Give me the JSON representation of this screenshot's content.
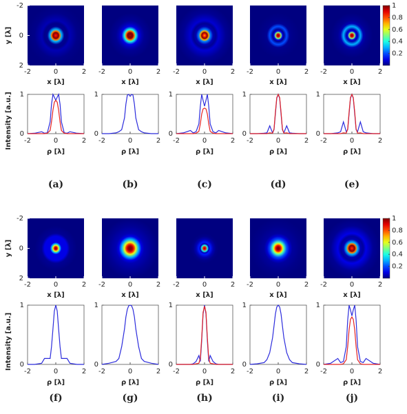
{
  "chart_data": [
    {
      "type": "line",
      "label": "(a)",
      "xlabel": "ρ [λ]",
      "ylabel": "Intensity [a.u.]",
      "xlim": [
        -2,
        2
      ],
      "xticks": [
        -2,
        0,
        2
      ],
      "ylim": [
        0,
        1
      ],
      "yticks": [
        0,
        1
      ],
      "image": {
        "xlabel": "x [λ]",
        "ylabel": "y [λ]",
        "xlim": [
          -2,
          2
        ],
        "xticks": [
          -2,
          0,
          2
        ],
        "ylim": [
          2,
          -2
        ],
        "yticks": [
          -2,
          0,
          2
        ]
      },
      "x": [
        -2,
        -1.5,
        -1,
        -0.8,
        -0.6,
        -0.4,
        -0.3,
        -0.2,
        -0.1,
        0,
        0.1,
        0.2,
        0.3,
        0.4,
        0.6,
        0.8,
        1,
        1.5,
        2
      ],
      "series": [
        {
          "color": "#2b2bdc",
          "values": [
            0,
            0.01,
            0.05,
            0.01,
            0.02,
            0.3,
            0.75,
            1,
            0.93,
            0.85,
            0.93,
            1,
            0.75,
            0.3,
            0.02,
            0.01,
            0.05,
            0.01,
            0
          ]
        },
        {
          "color": "#e42222",
          "values": [
            0,
            0,
            0,
            0,
            0.01,
            0.08,
            0.3,
            0.6,
            0.8,
            0.85,
            0.8,
            0.6,
            0.3,
            0.08,
            0.01,
            0,
            0,
            0,
            0
          ]
        }
      ]
    },
    {
      "type": "line",
      "label": "(b)",
      "xlabel": "ρ [λ]",
      "xlim": [
        -2,
        2
      ],
      "xticks": [
        -2,
        0,
        2
      ],
      "ylim": [
        0,
        1
      ],
      "yticks": [
        0,
        1
      ],
      "image": {
        "xlabel": "x [λ]",
        "xlim": [
          -2,
          2
        ],
        "xticks": [
          -2,
          0,
          2
        ],
        "ylim": [
          2,
          -2
        ]
      },
      "x": [
        -2,
        -1.5,
        -1,
        -0.8,
        -0.6,
        -0.4,
        -0.3,
        -0.2,
        -0.1,
        0,
        0.1,
        0.2,
        0.3,
        0.4,
        0.6,
        0.8,
        1,
        1.5,
        2
      ],
      "series": [
        {
          "color": "#2b2bdc",
          "values": [
            0,
            0,
            0.02,
            0.05,
            0.1,
            0.4,
            0.75,
            0.98,
            1,
            0.95,
            1,
            0.98,
            0.75,
            0.4,
            0.1,
            0.05,
            0.02,
            0,
            0
          ]
        }
      ]
    },
    {
      "type": "line",
      "label": "(c)",
      "xlabel": "ρ [λ]",
      "xlim": [
        -2,
        2
      ],
      "xticks": [
        -2,
        0,
        2
      ],
      "ylim": [
        0,
        1
      ],
      "yticks": [
        0,
        1
      ],
      "image": {
        "xlabel": "x [λ]",
        "xlim": [
          -2,
          2
        ],
        "xticks": [
          -2,
          0,
          2
        ],
        "ylim": [
          2,
          -2
        ]
      },
      "x": [
        -2,
        -1.5,
        -1,
        -0.8,
        -0.6,
        -0.4,
        -0.3,
        -0.2,
        -0.1,
        0,
        0.1,
        0.2,
        0.3,
        0.4,
        0.6,
        0.8,
        1,
        1.5,
        2
      ],
      "series": [
        {
          "color": "#2b2bdc",
          "values": [
            0,
            0.02,
            0.08,
            0.02,
            0.05,
            0.25,
            0.7,
            1,
            0.85,
            0.7,
            0.85,
            1,
            0.7,
            0.25,
            0.05,
            0.02,
            0.08,
            0.02,
            0
          ]
        },
        {
          "color": "#e42222",
          "values": [
            0,
            0,
            0,
            0,
            0.01,
            0.06,
            0.25,
            0.5,
            0.63,
            0.65,
            0.63,
            0.5,
            0.25,
            0.06,
            0.01,
            0,
            0,
            0,
            0
          ]
        }
      ]
    },
    {
      "type": "line",
      "label": "(d)",
      "xlabel": "ρ [λ]",
      "xlim": [
        -2,
        2
      ],
      "xticks": [
        -2,
        0,
        2
      ],
      "ylim": [
        0,
        1
      ],
      "yticks": [
        0,
        1
      ],
      "image": {
        "xlabel": "x [λ]",
        "xlim": [
          -2,
          2
        ],
        "xticks": [
          -2,
          0,
          2
        ],
        "ylim": [
          2,
          -2
        ]
      },
      "x": [
        -2,
        -1.5,
        -1,
        -0.8,
        -0.6,
        -0.4,
        -0.3,
        -0.2,
        -0.1,
        0,
        0.1,
        0.2,
        0.3,
        0.4,
        0.6,
        0.8,
        1,
        1.5,
        2
      ],
      "series": [
        {
          "color": "#2b2bdc",
          "values": [
            0,
            0,
            0.01,
            0.02,
            0.2,
            0.02,
            0.1,
            0.5,
            0.9,
            1,
            0.9,
            0.5,
            0.1,
            0.02,
            0.2,
            0.02,
            0.01,
            0,
            0
          ]
        },
        {
          "color": "#e42222",
          "values": [
            0,
            0,
            0,
            0,
            0.02,
            0.01,
            0.12,
            0.55,
            0.92,
            1,
            0.92,
            0.55,
            0.12,
            0.01,
            0.02,
            0,
            0,
            0,
            0
          ]
        }
      ]
    },
    {
      "type": "line",
      "label": "(e)",
      "xlabel": "ρ [λ]",
      "xlim": [
        -2,
        2
      ],
      "xticks": [
        -2,
        0,
        2
      ],
      "ylim": [
        0,
        1
      ],
      "yticks": [
        0,
        1
      ],
      "image": {
        "xlabel": "x [λ]",
        "xlim": [
          -2,
          2
        ],
        "xticks": [
          -2,
          0,
          2
        ],
        "ylim": [
          2,
          -2
        ]
      },
      "colorbar": {
        "clim": [
          0,
          1
        ],
        "ticks": [
          0.2,
          0.4,
          0.6,
          0.8,
          1
        ]
      },
      "x": [
        -2,
        -1.5,
        -1,
        -0.8,
        -0.6,
        -0.4,
        -0.3,
        -0.2,
        -0.1,
        0,
        0.1,
        0.2,
        0.3,
        0.4,
        0.6,
        0.8,
        1,
        1.5,
        2
      ],
      "series": [
        {
          "color": "#2b2bdc",
          "values": [
            0,
            0,
            0.02,
            0.05,
            0.3,
            0.05,
            0.1,
            0.5,
            0.9,
            1,
            0.9,
            0.5,
            0.1,
            0.05,
            0.3,
            0.05,
            0.02,
            0,
            0
          ]
        },
        {
          "color": "#e42222",
          "values": [
            0,
            0,
            0,
            0,
            0.02,
            0.01,
            0.12,
            0.55,
            0.92,
            1,
            0.92,
            0.55,
            0.12,
            0.01,
            0.02,
            0,
            0,
            0,
            0
          ]
        }
      ]
    },
    {
      "type": "line",
      "label": "(f)",
      "xlabel": "ρ [λ]",
      "ylabel": "Intensity [a.u.]",
      "xlim": [
        -2,
        2
      ],
      "xticks": [
        -2,
        0,
        2
      ],
      "ylim": [
        0,
        1
      ],
      "yticks": [
        0,
        1
      ],
      "image": {
        "xlabel": "x [λ]",
        "ylabel": "y [λ]",
        "xlim": [
          -2,
          2
        ],
        "xticks": [
          -2,
          0,
          2
        ],
        "ylim": [
          2,
          -2
        ],
        "yticks": [
          -2,
          0,
          2
        ]
      },
      "x": [
        -2,
        -1.5,
        -1,
        -0.8,
        -0.6,
        -0.4,
        -0.3,
        -0.2,
        -0.1,
        0,
        0.1,
        0.2,
        0.3,
        0.4,
        0.6,
        0.8,
        1,
        1.5,
        2
      ],
      "series": [
        {
          "color": "#2b2bdc",
          "values": [
            0,
            0,
            0.02,
            0.1,
            0.1,
            0.1,
            0.3,
            0.6,
            0.9,
            1,
            0.9,
            0.6,
            0.3,
            0.1,
            0.1,
            0.1,
            0.02,
            0,
            0
          ]
        }
      ]
    },
    {
      "type": "line",
      "label": "(g)",
      "xlabel": "ρ [λ]",
      "xlim": [
        -2,
        2
      ],
      "xticks": [
        -2,
        0,
        2
      ],
      "ylim": [
        0,
        1
      ],
      "yticks": [
        0,
        1
      ],
      "image": {
        "xlabel": "x [λ]",
        "xlim": [
          -2,
          2
        ],
        "xticks": [
          -2,
          0,
          2
        ],
        "ylim": [
          2,
          -2
        ]
      },
      "x": [
        -2,
        -1.5,
        -1,
        -0.8,
        -0.6,
        -0.4,
        -0.3,
        -0.2,
        -0.1,
        0,
        0.1,
        0.2,
        0.3,
        0.4,
        0.6,
        0.8,
        1,
        1.5,
        2
      ],
      "series": [
        {
          "color": "#2b2bdc",
          "values": [
            0,
            0.02,
            0.05,
            0.1,
            0.3,
            0.6,
            0.8,
            0.93,
            0.99,
            1,
            0.99,
            0.93,
            0.8,
            0.6,
            0.3,
            0.1,
            0.05,
            0.02,
            0
          ]
        }
      ]
    },
    {
      "type": "line",
      "label": "(h)",
      "xlabel": "ρ [λ]",
      "xlim": [
        -2,
        2
      ],
      "xticks": [
        -2,
        0,
        2
      ],
      "ylim": [
        0,
        1
      ],
      "yticks": [
        0,
        1
      ],
      "image": {
        "xlabel": "x [λ]",
        "xlim": [
          -2,
          2
        ],
        "xticks": [
          -2,
          0,
          2
        ],
        "ylim": [
          2,
          -2
        ]
      },
      "x": [
        -2,
        -1.5,
        -1,
        -0.8,
        -0.6,
        -0.4,
        -0.3,
        -0.2,
        -0.1,
        0,
        0.1,
        0.2,
        0.3,
        0.4,
        0.6,
        0.8,
        1,
        1.5,
        2
      ],
      "series": [
        {
          "color": "#2b2bdc",
          "values": [
            0,
            0,
            0,
            0.01,
            0.05,
            0.15,
            0.05,
            0.4,
            0.85,
            1,
            0.85,
            0.4,
            0.05,
            0.15,
            0.05,
            0.01,
            0,
            0,
            0
          ]
        },
        {
          "color": "#e42222",
          "values": [
            0,
            0,
            0,
            0,
            0.01,
            0.02,
            0.1,
            0.45,
            0.88,
            0.98,
            0.88,
            0.45,
            0.1,
            0.02,
            0.01,
            0,
            0,
            0,
            0
          ]
        }
      ]
    },
    {
      "type": "line",
      "label": "(i)",
      "xlabel": "ρ [λ]",
      "xlim": [
        -2,
        2
      ],
      "xticks": [
        -2,
        0,
        2
      ],
      "ylim": [
        0,
        1
      ],
      "yticks": [
        0,
        1
      ],
      "image": {
        "xlabel": "x [λ]",
        "xlim": [
          -2,
          2
        ],
        "xticks": [
          -2,
          0,
          2
        ],
        "ylim": [
          2,
          -2
        ]
      },
      "x": [
        -2,
        -1.5,
        -1,
        -0.8,
        -0.6,
        -0.4,
        -0.3,
        -0.2,
        -0.1,
        0,
        0.1,
        0.2,
        0.3,
        0.4,
        0.6,
        0.8,
        1,
        1.5,
        2
      ],
      "series": [
        {
          "color": "#2b2bdc",
          "values": [
            0,
            0.01,
            0.03,
            0.08,
            0.2,
            0.45,
            0.65,
            0.85,
            0.97,
            1,
            0.97,
            0.85,
            0.65,
            0.45,
            0.2,
            0.08,
            0.03,
            0.01,
            0
          ]
        }
      ]
    },
    {
      "type": "line",
      "label": "(j)",
      "xlabel": "ρ [λ]",
      "xlim": [
        -2,
        2
      ],
      "xticks": [
        -2,
        0,
        2
      ],
      "ylim": [
        0,
        1
      ],
      "yticks": [
        0,
        1
      ],
      "image": {
        "xlabel": "x [λ]",
        "xlim": [
          -2,
          2
        ],
        "xticks": [
          -2,
          0,
          2
        ],
        "ylim": [
          2,
          -2
        ]
      },
      "colorbar": {
        "clim": [
          0,
          1
        ],
        "ticks": [
          0.2,
          0.4,
          0.6,
          0.8,
          1
        ]
      },
      "x": [
        -2,
        -1.5,
        -1,
        -0.8,
        -0.6,
        -0.4,
        -0.3,
        -0.2,
        -0.1,
        0,
        0.1,
        0.2,
        0.3,
        0.4,
        0.6,
        0.8,
        1,
        1.5,
        2
      ],
      "series": [
        {
          "color": "#2b2bdc",
          "values": [
            0,
            0.02,
            0.1,
            0.03,
            0.05,
            0.3,
            0.75,
            1,
            0.92,
            0.82,
            0.92,
            1,
            0.75,
            0.3,
            0.05,
            0.03,
            0.1,
            0.02,
            0
          ]
        },
        {
          "color": "#e42222",
          "values": [
            0,
            0,
            0,
            0,
            0.01,
            0.08,
            0.3,
            0.58,
            0.76,
            0.8,
            0.76,
            0.58,
            0.3,
            0.08,
            0.01,
            0,
            0,
            0,
            0
          ]
        }
      ]
    }
  ]
}
